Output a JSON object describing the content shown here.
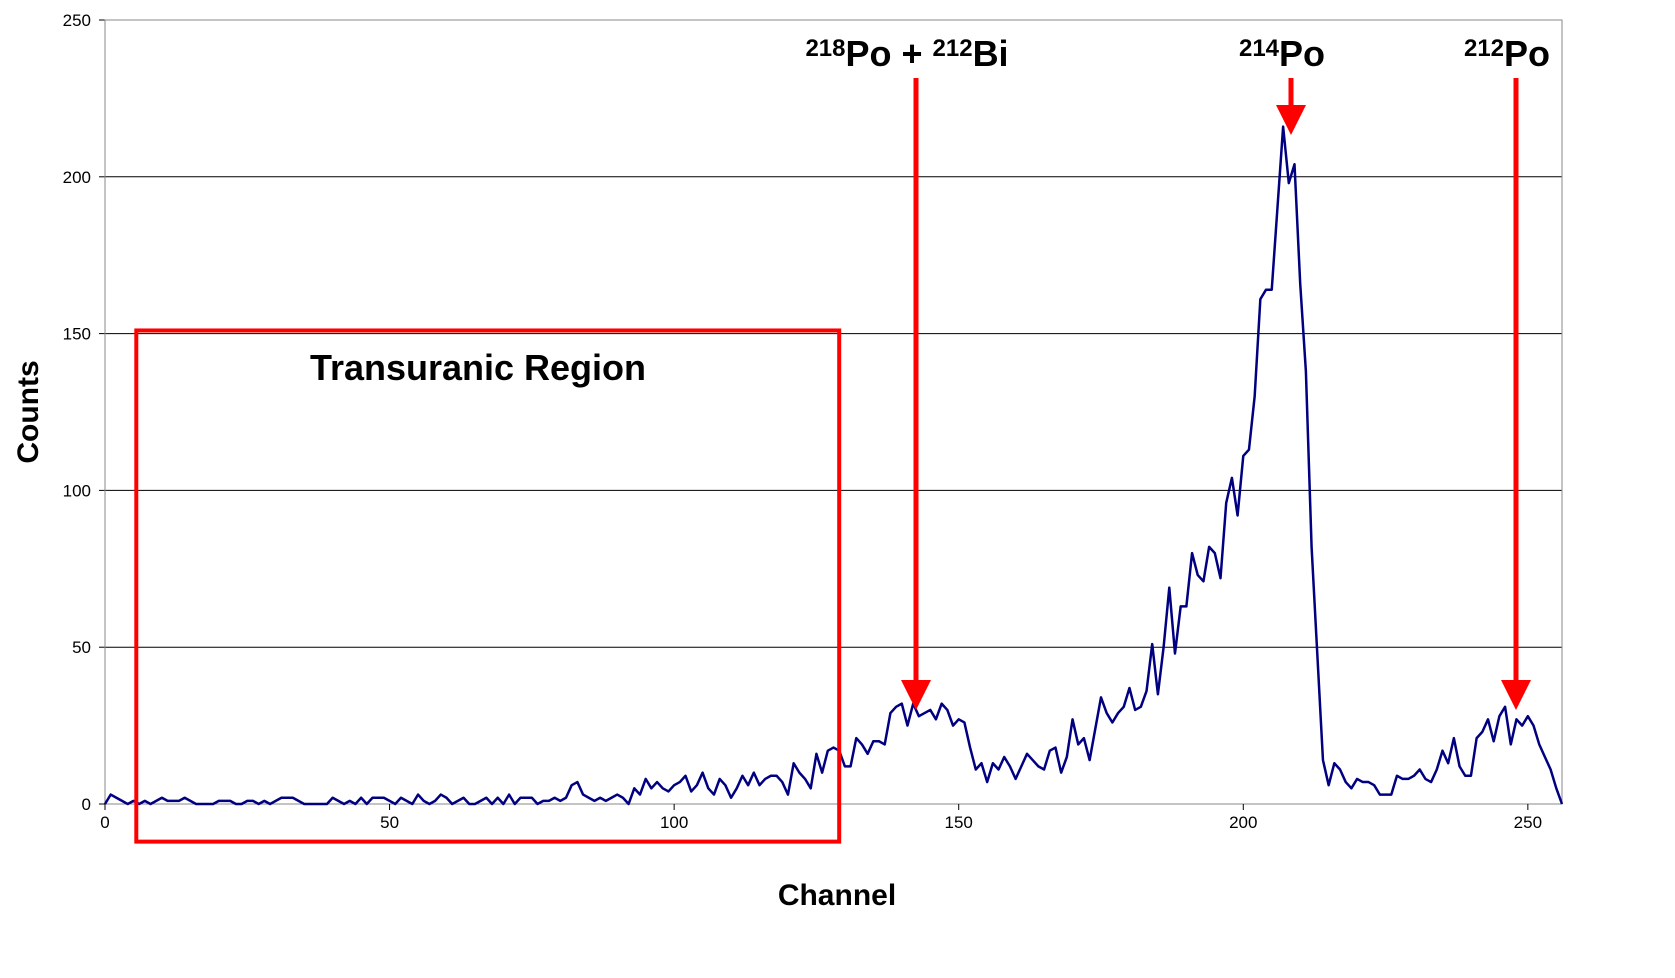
{
  "chart_data": {
    "type": "line",
    "xlabel": "Channel",
    "ylabel": "Counts",
    "xlim": [
      0,
      256
    ],
    "ylim": [
      0,
      250
    ],
    "xticks": [
      0,
      50,
      100,
      150,
      200,
      250
    ],
    "yticks": [
      0,
      50,
      100,
      150,
      200,
      250
    ],
    "grid": true,
    "x": [
      0,
      1,
      2,
      3,
      4,
      5,
      6,
      7,
      8,
      9,
      10,
      11,
      12,
      13,
      14,
      15,
      16,
      17,
      18,
      19,
      20,
      21,
      22,
      23,
      24,
      25,
      26,
      27,
      28,
      29,
      30,
      31,
      32,
      33,
      34,
      35,
      36,
      37,
      38,
      39,
      40,
      41,
      42,
      43,
      44,
      45,
      46,
      47,
      48,
      49,
      50,
      51,
      52,
      53,
      54,
      55,
      56,
      57,
      58,
      59,
      60,
      61,
      62,
      63,
      64,
      65,
      66,
      67,
      68,
      69,
      70,
      71,
      72,
      73,
      74,
      75,
      76,
      77,
      78,
      79,
      80,
      81,
      82,
      83,
      84,
      85,
      86,
      87,
      88,
      89,
      90,
      91,
      92,
      93,
      94,
      95,
      96,
      97,
      98,
      99,
      100,
      101,
      102,
      103,
      104,
      105,
      106,
      107,
      108,
      109,
      110,
      111,
      112,
      113,
      114,
      115,
      116,
      117,
      118,
      119,
      120,
      121,
      122,
      123,
      124,
      125,
      126,
      127,
      128,
      129,
      130,
      131,
      132,
      133,
      134,
      135,
      136,
      137,
      138,
      139,
      140,
      141,
      142,
      143,
      144,
      145,
      146,
      147,
      148,
      149,
      150,
      151,
      152,
      153,
      154,
      155,
      156,
      157,
      158,
      159,
      160,
      161,
      162,
      163,
      164,
      165,
      166,
      167,
      168,
      169,
      170,
      171,
      172,
      173,
      174,
      175,
      176,
      177,
      178,
      179,
      180,
      181,
      182,
      183,
      184,
      185,
      186,
      187,
      188,
      189,
      190,
      191,
      192,
      193,
      194,
      195,
      196,
      197,
      198,
      199,
      200,
      201,
      202,
      203,
      204,
      205,
      206,
      207,
      208,
      209,
      210,
      211,
      212,
      213,
      214,
      215,
      216,
      217,
      218,
      219,
      220,
      221,
      222,
      223,
      224,
      225,
      226,
      227,
      228,
      229,
      230,
      231,
      232,
      233,
      234,
      235,
      236,
      237,
      238,
      239,
      240,
      241,
      242,
      243,
      244,
      245,
      246,
      247,
      248,
      249,
      250,
      251,
      252,
      253,
      254,
      255,
      256
    ],
    "series": [
      {
        "color": "#000080",
        "values": [
          0,
          3,
          2,
          1,
          0,
          1,
          0,
          1,
          0,
          1,
          2,
          1,
          1,
          1,
          2,
          1,
          0,
          0,
          0,
          0,
          1,
          1,
          1,
          0,
          0,
          1,
          1,
          0,
          1,
          0,
          1,
          2,
          2,
          2,
          1,
          0,
          0,
          0,
          0,
          0,
          2,
          1,
          0,
          1,
          0,
          2,
          0,
          2,
          2,
          2,
          1,
          0,
          2,
          1,
          0,
          3,
          1,
          0,
          1,
          3,
          2,
          0,
          1,
          2,
          0,
          0,
          1,
          2,
          0,
          2,
          0,
          3,
          0,
          2,
          2,
          2,
          0,
          1,
          1,
          2,
          1,
          2,
          6,
          7,
          3,
          2,
          1,
          2,
          1,
          2,
          3,
          2,
          0,
          5,
          3,
          8,
          5,
          7,
          5,
          4,
          6,
          7,
          9,
          4,
          6,
          10,
          5,
          3,
          8,
          6,
          2,
          5,
          9,
          6,
          10,
          6,
          8,
          9,
          9,
          7,
          3,
          13,
          10,
          8,
          5,
          16,
          10,
          17,
          18,
          17,
          12,
          12,
          21,
          19,
          16,
          20,
          20,
          19,
          29,
          31,
          32,
          25,
          32,
          28,
          29,
          30,
          27,
          32,
          30,
          25,
          27,
          26,
          18,
          11,
          13,
          7,
          13,
          11,
          15,
          12,
          8,
          12,
          16,
          14,
          12,
          11,
          17,
          18,
          10,
          15,
          27,
          19,
          21,
          14,
          24,
          34,
          29,
          26,
          29,
          31,
          37,
          30,
          31,
          36,
          51,
          35,
          50,
          69,
          48,
          63,
          63,
          80,
          73,
          71,
          82,
          80,
          72,
          96,
          104,
          92,
          111,
          113,
          130,
          161,
          164,
          164,
          190,
          216,
          198,
          204,
          166,
          138,
          82,
          48,
          14,
          6,
          13,
          11,
          7,
          5,
          8,
          7,
          7,
          6,
          3,
          3,
          3,
          9,
          8,
          8,
          9,
          11,
          8,
          7,
          11,
          17,
          13,
          21,
          12,
          9,
          9,
          21,
          23,
          27,
          20,
          28,
          31,
          19,
          27,
          25,
          28,
          25,
          19,
          15,
          11,
          5,
          0
        ]
      }
    ],
    "annotations": [
      "Transuranic Region"
    ],
    "annotation_color": "#ff0000",
    "peak_labels": [
      [
        {
          "text": "218",
          "sup": true
        },
        {
          "text": "Po + "
        },
        {
          "text": "212",
          "sup": true
        },
        {
          "text": "Bi"
        }
      ],
      [
        {
          "text": "214",
          "sup": true
        },
        {
          "text": "Po"
        }
      ],
      [
        {
          "text": "212",
          "sup": true
        },
        {
          "text": "Po"
        }
      ]
    ]
  }
}
